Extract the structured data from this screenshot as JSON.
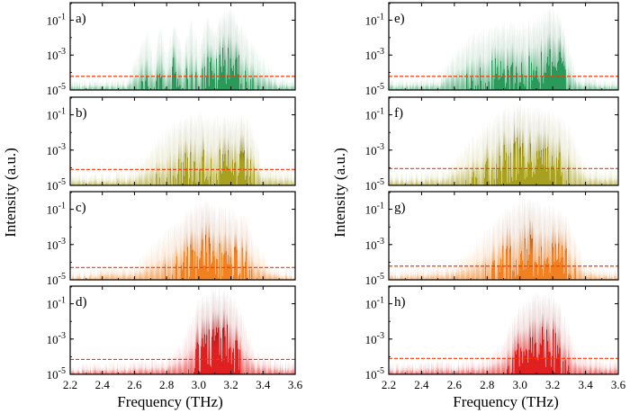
{
  "chart_data": {
    "type": "line",
    "description_units": {
      "x": "THz",
      "y": "a.u. (log scale)"
    },
    "xlabel": "Frequency (THz)",
    "ylabel": "Intensity (a.u.)",
    "xlim": [
      2.2,
      3.6
    ],
    "ylim": [
      1e-05,
      1
    ],
    "x_ticks": [
      2.2,
      2.4,
      2.6,
      2.8,
      3.0,
      3.2,
      3.4,
      3.6
    ],
    "x_tick_labels": [
      "2.2",
      "2.4",
      "2.6",
      "2.8",
      "3.0",
      "3.2",
      "3.4",
      "3.6"
    ],
    "y_ticks": [
      0.1,
      0.001,
      1e-05
    ],
    "y_tick_labels": [
      {
        "base": "10",
        "exp": "-1"
      },
      {
        "base": "10",
        "exp": "-3"
      },
      {
        "base": "10",
        "exp": "-5"
      }
    ],
    "series_colors": {
      "spectrum_line": "#ffffff",
      "noise_floor_line": "#ff3300"
    },
    "panels": [
      {
        "label": "a)",
        "column": 0,
        "row": 0,
        "colors": {
          "bright": "#2a9a5a",
          "dark": "#0a3a20"
        },
        "envelope": [
          [
            2.2,
            4e-05
          ],
          [
            2.55,
            6e-05
          ],
          [
            2.62,
            0.002
          ],
          [
            2.68,
            0.05
          ],
          [
            2.72,
            0.001
          ],
          [
            2.76,
            0.1
          ],
          [
            2.8,
            0.002
          ],
          [
            2.85,
            0.15
          ],
          [
            2.9,
            0.003
          ],
          [
            2.95,
            0.2
          ],
          [
            3.0,
            0.005
          ],
          [
            3.05,
            0.3
          ],
          [
            3.1,
            0.05
          ],
          [
            3.15,
            0.5
          ],
          [
            3.2,
            1.0
          ],
          [
            3.25,
            0.1
          ],
          [
            3.3,
            0.02
          ],
          [
            3.4,
            0.001
          ],
          [
            3.5,
            8e-05
          ],
          [
            3.6,
            5e-05
          ]
        ],
        "noise_floor": 6e-05
      },
      {
        "label": "b)",
        "column": 0,
        "row": 1,
        "colors": {
          "bright": "#a8a020",
          "dark": "#3a3a08"
        },
        "envelope": [
          [
            2.2,
            6e-05
          ],
          [
            2.6,
            0.0001
          ],
          [
            2.7,
            0.002
          ],
          [
            2.8,
            0.02
          ],
          [
            2.9,
            0.1
          ],
          [
            3.0,
            0.2
          ],
          [
            3.1,
            0.1
          ],
          [
            3.2,
            0.12
          ],
          [
            3.3,
            0.1
          ],
          [
            3.35,
            0.01
          ],
          [
            3.4,
            0.0002
          ],
          [
            3.6,
            8e-05
          ]
        ],
        "noise_floor": 8e-05
      },
      {
        "label": "c)",
        "column": 0,
        "row": 2,
        "colors": {
          "bright": "#f08020",
          "dark": "#501a05"
        },
        "envelope": [
          [
            2.2,
            3e-05
          ],
          [
            2.4,
            8e-05
          ],
          [
            2.6,
            0.0001
          ],
          [
            2.7,
            0.001
          ],
          [
            2.8,
            0.01
          ],
          [
            2.9,
            0.08
          ],
          [
            3.0,
            0.3
          ],
          [
            3.05,
            0.5
          ],
          [
            3.1,
            0.2
          ],
          [
            3.2,
            0.15
          ],
          [
            3.3,
            0.05
          ],
          [
            3.35,
            0.002
          ],
          [
            3.45,
            8e-05
          ],
          [
            3.6,
            4e-05
          ]
        ],
        "noise_floor": 5e-05
      },
      {
        "label": "d)",
        "column": 0,
        "row": 3,
        "colors": {
          "bright": "#e02020",
          "dark": "#400505"
        },
        "envelope": [
          [
            2.2,
            4e-05
          ],
          [
            2.8,
            0.0001
          ],
          [
            2.9,
            0.001
          ],
          [
            2.95,
            0.02
          ],
          [
            3.0,
            0.3
          ],
          [
            3.1,
            1.0
          ],
          [
            3.2,
            0.8
          ],
          [
            3.25,
            0.1
          ],
          [
            3.3,
            0.005
          ],
          [
            3.35,
            0.0002
          ],
          [
            3.6,
            6e-05
          ]
        ],
        "noise_floor": 7e-05
      },
      {
        "label": "e)",
        "column": 1,
        "row": 0,
        "colors": {
          "bright": "#2a9a5a",
          "dark": "#0a3a20"
        },
        "envelope": [
          [
            2.2,
            4e-05
          ],
          [
            2.5,
            8e-05
          ],
          [
            2.6,
            0.002
          ],
          [
            2.7,
            0.02
          ],
          [
            2.8,
            0.05
          ],
          [
            2.9,
            0.1
          ],
          [
            3.0,
            0.1
          ],
          [
            3.1,
            0.2
          ],
          [
            3.2,
            1.0
          ],
          [
            3.25,
            0.2
          ],
          [
            3.3,
            0.005
          ],
          [
            3.35,
            0.0001
          ],
          [
            3.6,
            5e-05
          ]
        ],
        "noise_floor": 6e-05
      },
      {
        "label": "f)",
        "column": 1,
        "row": 1,
        "colors": {
          "bright": "#a8a020",
          "dark": "#3a3a08"
        },
        "envelope": [
          [
            2.2,
            6e-05
          ],
          [
            2.55,
            0.0001
          ],
          [
            2.65,
            0.002
          ],
          [
            2.8,
            0.05
          ],
          [
            2.9,
            0.3
          ],
          [
            3.0,
            0.6
          ],
          [
            3.1,
            0.3
          ],
          [
            3.2,
            0.2
          ],
          [
            3.3,
            0.05
          ],
          [
            3.35,
            0.002
          ],
          [
            3.4,
            0.0002
          ],
          [
            3.6,
            8e-05
          ]
        ],
        "noise_floor": 9e-05
      },
      {
        "label": "g)",
        "column": 1,
        "row": 2,
        "colors": {
          "bright": "#f08020",
          "dark": "#501a05"
        },
        "envelope": [
          [
            2.2,
            4e-05
          ],
          [
            2.6,
            0.0001
          ],
          [
            2.7,
            0.001
          ],
          [
            2.8,
            0.01
          ],
          [
            2.9,
            0.1
          ],
          [
            3.0,
            0.6
          ],
          [
            3.1,
            0.4
          ],
          [
            3.2,
            0.2
          ],
          [
            3.3,
            0.05
          ],
          [
            3.35,
            0.002
          ],
          [
            3.4,
            0.0001
          ],
          [
            3.6,
            4e-05
          ]
        ],
        "noise_floor": 6e-05
      },
      {
        "label": "h)",
        "column": 1,
        "row": 3,
        "colors": {
          "bright": "#e02020",
          "dark": "#400505"
        },
        "envelope": [
          [
            2.2,
            5e-05
          ],
          [
            2.8,
            0.0001
          ],
          [
            2.9,
            0.001
          ],
          [
            2.95,
            0.02
          ],
          [
            3.0,
            0.1
          ],
          [
            3.1,
            0.6
          ],
          [
            3.2,
            0.6
          ],
          [
            3.25,
            0.1
          ],
          [
            3.3,
            0.005
          ],
          [
            3.35,
            0.0002
          ],
          [
            3.6,
            7e-05
          ]
        ],
        "noise_floor": 8e-05
      }
    ]
  }
}
